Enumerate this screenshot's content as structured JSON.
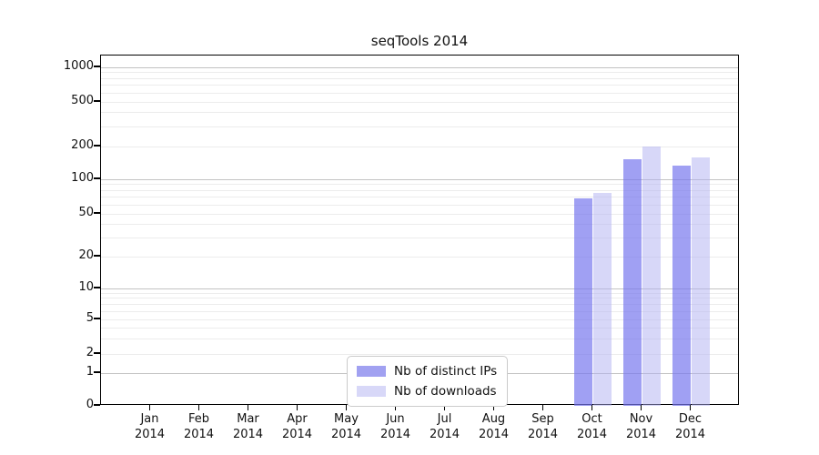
{
  "title": "seqTools 2014",
  "chart_data": {
    "type": "bar",
    "title": "seqTools 2014",
    "xlabel": "",
    "ylabel": "",
    "yscale": "symlog",
    "grid": true,
    "legend_position": "inside-bottom-center",
    "categories": [
      {
        "month": "Jan",
        "year": "2014"
      },
      {
        "month": "Feb",
        "year": "2014"
      },
      {
        "month": "Mar",
        "year": "2014"
      },
      {
        "month": "Apr",
        "year": "2014"
      },
      {
        "month": "May",
        "year": "2014"
      },
      {
        "month": "Jun",
        "year": "2014"
      },
      {
        "month": "Jul",
        "year": "2014"
      },
      {
        "month": "Aug",
        "year": "2014"
      },
      {
        "month": "Sep",
        "year": "2014"
      },
      {
        "month": "Oct",
        "year": "2014"
      },
      {
        "month": "Nov",
        "year": "2014"
      },
      {
        "month": "Dec",
        "year": "2014"
      }
    ],
    "series": [
      {
        "name": "Nb of distinct IPs",
        "color": "#a1a1f1",
        "bar_color": "rgba(120,120,238,0.70)",
        "values": [
          0,
          0,
          0,
          0,
          0,
          0,
          0,
          0,
          0,
          68,
          152,
          133
        ]
      },
      {
        "name": "Nb of downloads",
        "color": "#d8d8f8",
        "bar_color": "rgba(175,175,242,0.50)",
        "values": [
          0,
          0,
          0,
          0,
          0,
          0,
          0,
          0,
          0,
          76,
          200,
          160
        ]
      }
    ],
    "yticks": [
      0,
      1,
      2,
      5,
      10,
      20,
      50,
      100,
      200,
      500,
      1000
    ],
    "ytick_labels": [
      "0",
      "1",
      "2",
      "5",
      "10",
      "20",
      "50",
      "100",
      "200",
      "500",
      "1000"
    ],
    "ylim": [
      0,
      1200
    ]
  },
  "colors": {
    "grid_minor": "#ececec",
    "grid_major": "#c3c3c3",
    "axis_frame": "#000000",
    "background": "#ffffff"
  }
}
